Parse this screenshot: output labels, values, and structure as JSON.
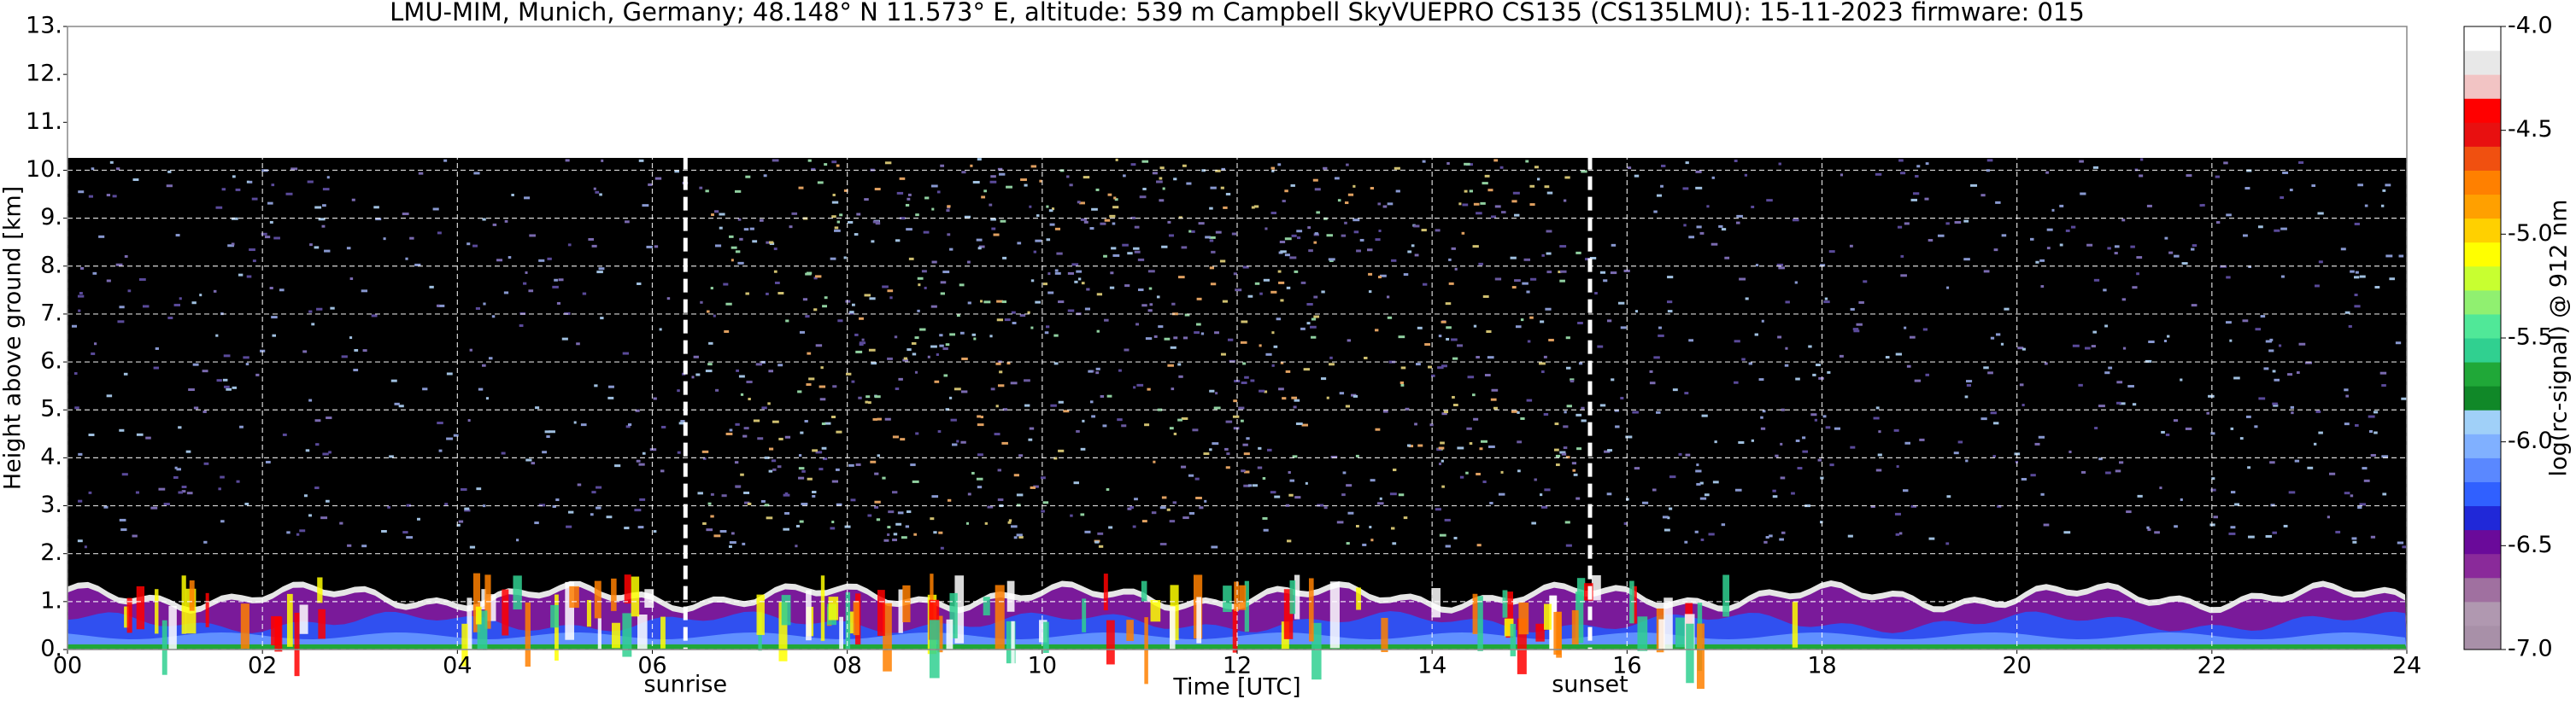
{
  "chart_data": {
    "type": "heatmap",
    "title": "LMU-MIM, Munich, Germany; 48.148° N 11.573° E, altitude: 539 m    Campbell SkyVUEPRO CS135 (CS135LMU): 15-11-2023    firmware: 015",
    "xlabel": "Time [UTC]",
    "ylabel": "Height above ground [km]",
    "xlim": [
      0,
      24
    ],
    "xticks": [
      {
        "value": 0,
        "label": "00"
      },
      {
        "value": 2,
        "label": "02"
      },
      {
        "value": 4,
        "label": "04"
      },
      {
        "value": 6,
        "label": "06"
      },
      {
        "value": 8,
        "label": "08"
      },
      10,
      12,
      14,
      16,
      18,
      20,
      22,
      24
    ],
    "ylim": [
      0,
      13
    ],
    "yticks": [
      {
        "value": 0,
        "label": "0."
      },
      {
        "value": 1,
        "label": "1."
      },
      {
        "value": 2,
        "label": "2."
      },
      {
        "value": 3,
        "label": "3."
      },
      {
        "value": 4,
        "label": "4."
      },
      {
        "value": 5,
        "label": "5."
      },
      {
        "value": 6,
        "label": "6."
      },
      {
        "value": 7,
        "label": "7."
      },
      {
        "value": 8,
        "label": "8."
      },
      {
        "value": 9,
        "label": "9."
      },
      {
        "value": 10,
        "label": "10."
      },
      {
        "value": 11,
        "label": "11."
      },
      {
        "value": 12,
        "label": "12."
      },
      {
        "value": 13,
        "label": "13."
      }
    ],
    "grid": true,
    "annotations": [
      {
        "text": "sunrise",
        "x": 6.34
      },
      {
        "text": "sunset",
        "x": 15.62
      }
    ],
    "colorbar": {
      "label": "log(rc-signal) @ 912 nm",
      "lim": [
        -7,
        -4
      ],
      "ticks": [
        {
          "value": -7,
          "label": "-7.0"
        },
        {
          "value": -6.5,
          "label": "-6.5"
        },
        {
          "value": -6,
          "label": "-6.0"
        },
        {
          "value": -5.5,
          "label": "-5.5"
        },
        {
          "value": -5,
          "label": "-5.0"
        },
        {
          "value": -4.5,
          "label": "-4.5"
        },
        {
          "value": -4,
          "label": "-4.0"
        }
      ],
      "colors": [
        "#a890a8",
        "#b098b0",
        "#a070a0",
        "#8a2a9a",
        "#6a0a9a",
        "#2028d8",
        "#3060ff",
        "#5a88ff",
        "#80b0ff",
        "#a0d0f8",
        "#108828",
        "#20a838",
        "#30d090",
        "#50e898",
        "#90f070",
        "#c8ff30",
        "#ffff00",
        "#ffd000",
        "#ffa000",
        "#ff8000",
        "#f05010",
        "#e81010",
        "#ff0000",
        "#f2c4c4",
        "#e8e8e8",
        "#ffffff"
      ]
    }
  }
}
